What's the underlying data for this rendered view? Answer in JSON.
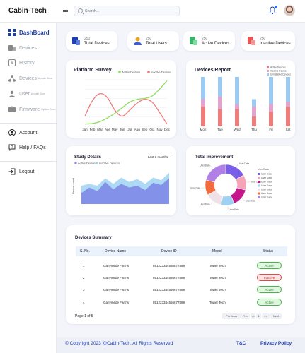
{
  "app": {
    "title": "Cabin-Tech"
  },
  "search": {
    "placeholder": "Search..."
  },
  "sidebar": {
    "items": [
      {
        "label": "DashBoard",
        "sub": "",
        "icon": "dashboard-grid-icon"
      },
      {
        "label": "Devices",
        "sub": "",
        "icon": "devices-icon"
      },
      {
        "label": "History",
        "sub": "",
        "icon": "history-icon"
      },
      {
        "label": "Devices",
        "sub": "Update Soon",
        "icon": "network-icon"
      },
      {
        "label": "User",
        "sub": "Update Soon",
        "icon": "user-icon"
      },
      {
        "label": "Firmware",
        "sub": "Update Soon",
        "icon": "firmware-icon"
      },
      {
        "label": "Account",
        "sub": "",
        "icon": "account-icon"
      },
      {
        "label": "Help / FAQs",
        "sub": "",
        "icon": "help-icon"
      },
      {
        "label": "Logout",
        "sub": "",
        "icon": "logout-icon"
      }
    ]
  },
  "stats": [
    {
      "value": "250",
      "label": "Total Devices",
      "color": "#1f3fae"
    },
    {
      "value": "250",
      "label": "Total Users",
      "color": "#e8a51c"
    },
    {
      "value": "250",
      "label": "Active Devices",
      "color": "#3bb36a"
    },
    {
      "value": "250",
      "label": "Inactive Devices",
      "color": "#e45757"
    }
  ],
  "platform_survey": {
    "title": "Platform Survey",
    "chart_data": {
      "type": "line",
      "categories": [
        "Jan",
        "Feb",
        "Mar",
        "Apr",
        "May",
        "Jun",
        "Jul",
        "Aug",
        "Sep",
        "Oct",
        "Nov",
        "Dec"
      ],
      "ylim": [
        0,
        100
      ],
      "legend": "top-right",
      "series": [
        {
          "name": "Active Devices",
          "color": "#8fdd5d",
          "values": [
            5,
            6,
            10,
            18,
            28,
            40,
            52,
            58,
            60,
            65,
            80,
            98
          ]
        },
        {
          "name": "Inactive Devices",
          "color": "#f07a7a",
          "values": [
            22,
            55,
            70,
            62,
            35,
            22,
            35,
            50,
            58,
            52,
            30,
            5
          ]
        }
      ]
    }
  },
  "devices_report": {
    "title": "Devices Report",
    "chart_data": {
      "type": "bar",
      "stacked": true,
      "categories": [
        "Mon",
        "Tue",
        "Wed",
        "Thu",
        "Fri",
        "Sat"
      ],
      "ylim": [
        0,
        100
      ],
      "legend": "top-right",
      "series": [
        {
          "name": "Active Devices",
          "color": "#f07b7b",
          "values": [
            40,
            35,
            35,
            20,
            30,
            40
          ]
        },
        {
          "name": "Inactive Devices",
          "color": "#e3a3cf",
          "values": [
            15,
            25,
            10,
            20,
            15,
            10
          ]
        },
        {
          "name": "Uninstalled Devices",
          "color": "#9bcaf2",
          "values": [
            45,
            40,
            55,
            15,
            55,
            50
          ]
        }
      ]
    }
  },
  "study_details": {
    "title": "Study Details",
    "dropdown": "Last 3 months",
    "chart_data": {
      "type": "area",
      "ylabel": "Device count",
      "legend": "top-left",
      "series": [
        {
          "name": "Active Devices",
          "color": "#7d84e6",
          "values": [
            30,
            45,
            35,
            60,
            40,
            55,
            45,
            50,
            38,
            58,
            52,
            70
          ]
        },
        {
          "name": "Inactive Devices",
          "color": "#9fd2f2",
          "values": [
            50,
            55,
            50,
            70,
            55,
            72,
            60,
            68,
            55,
            72,
            65,
            85
          ]
        }
      ]
    }
  },
  "total_improvement": {
    "title": "Total Improvement",
    "chart_data": {
      "type": "pie",
      "donut": true,
      "legend_title": "User Data",
      "slices": [
        {
          "label": "User Data",
          "value": 17,
          "color": "#7b5ee8"
        },
        {
          "label": "User Data",
          "value": 12,
          "color": "#f5a3b6"
        },
        {
          "label": "User Data",
          "value": 14,
          "color": "#c5158a"
        },
        {
          "label": "User Data",
          "value": 11,
          "color": "#9fd2f2"
        },
        {
          "label": "User Data",
          "value": 13,
          "color": "#f0e0e8"
        },
        {
          "label": "User Data",
          "value": 12,
          "color": "#f26b3a"
        },
        {
          "label": "User Data",
          "value": 21,
          "color": "#b080e6"
        }
      ]
    }
  },
  "devices_summary": {
    "title": "Devices Summary",
    "columns": [
      "S. No.",
      "Device Name",
      "Device ID",
      "Model",
      "Status"
    ],
    "rows": [
      {
        "no": "1",
        "name": "Ganymede Farms",
        "id": "891223344556677889",
        "model": "Tower Tech",
        "status": "Active"
      },
      {
        "no": "2",
        "name": "Ganymede Farms",
        "id": "891223344556677889",
        "model": "Tower Tech",
        "status": "Inactive"
      },
      {
        "no": "3",
        "name": "Ganymede Farms",
        "id": "891223344556677889",
        "model": "Tower Tech",
        "status": "Active"
      },
      {
        "no": "4",
        "name": "Ganymede Farms",
        "id": "891223344556677889",
        "model": "Tower Tech",
        "status": "Active"
      }
    ],
    "page_info": "Page 1 of 5",
    "pager": [
      "Previous",
      "Prev",
      "<<",
      "1",
      ">>",
      "Next"
    ]
  },
  "footer": {
    "copyright": "Copyright 2023 @Cabin-Tech. All Rights Reserved",
    "links": [
      "T&C",
      "Privacy Policy"
    ]
  }
}
